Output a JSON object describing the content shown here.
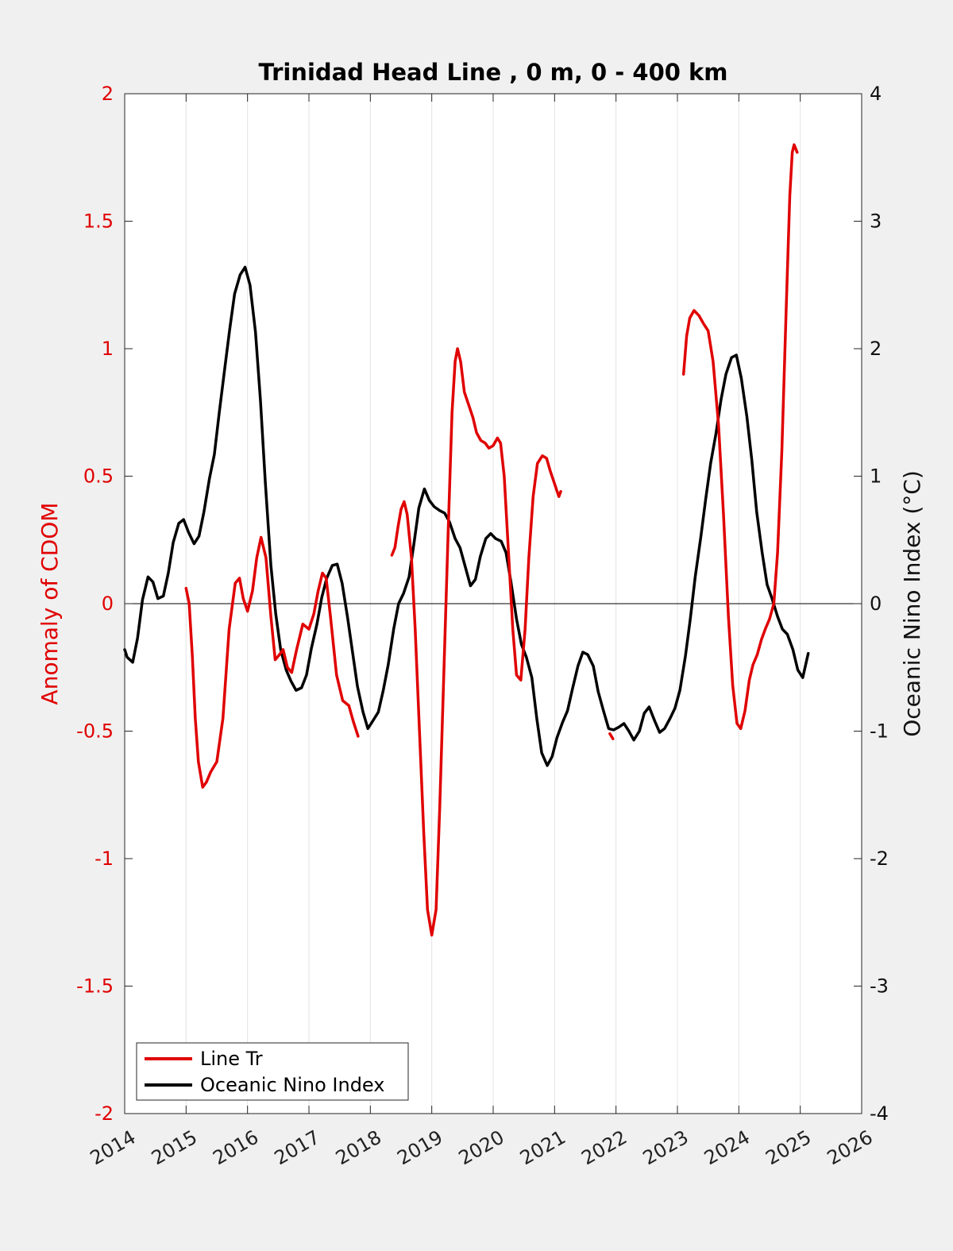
{
  "chart_data": {
    "type": "line",
    "title": "Trinidad Head Line , 0 m, 0 - 400 km",
    "xlabel": "",
    "ylabel_left": "Anomaly of CDOM",
    "ylabel_right": "Oceanic Nino Index (°C)",
    "xlim": [
      2014,
      2026
    ],
    "ylim_left": [
      -2,
      2
    ],
    "ylim_right": [
      -4,
      4
    ],
    "x_ticks": [
      "2014",
      "2015",
      "2016",
      "2017",
      "2018",
      "2019",
      "2020",
      "2021",
      "2022",
      "2023",
      "2024",
      "2025",
      "2026"
    ],
    "y_ticks_left": [
      "2",
      "1.5",
      "1",
      "0.5",
      "0",
      "-0.5",
      "-1",
      "-1.5",
      "-2"
    ],
    "y_ticks_right": [
      "4",
      "3",
      "2",
      "1",
      "0",
      "-1",
      "-2",
      "-3",
      "-4"
    ],
    "grid": "vertical",
    "zero_line": true,
    "legend": {
      "position": "bottom-left",
      "entries": [
        "Line Tr",
        "Oceanic Nino Index"
      ]
    },
    "colors": {
      "cdom": "#e00000",
      "oni": "#000000"
    },
    "series": [
      {
        "name": "Line Tr",
        "axis": "left",
        "segments": [
          [
            [
              2015.0,
              0.06
            ],
            [
              2015.05,
              0.0
            ],
            [
              2015.1,
              -0.2
            ],
            [
              2015.15,
              -0.45
            ],
            [
              2015.2,
              -0.62
            ],
            [
              2015.27,
              -0.72
            ],
            [
              2015.33,
              -0.7
            ],
            [
              2015.4,
              -0.66
            ],
            [
              2015.5,
              -0.62
            ],
            [
              2015.6,
              -0.45
            ],
            [
              2015.7,
              -0.1
            ],
            [
              2015.8,
              0.08
            ],
            [
              2015.87,
              0.1
            ],
            [
              2015.93,
              0.02
            ],
            [
              2016.0,
              -0.03
            ],
            [
              2016.08,
              0.05
            ],
            [
              2016.15,
              0.18
            ],
            [
              2016.22,
              0.26
            ],
            [
              2016.3,
              0.18
            ],
            [
              2016.38,
              -0.05
            ],
            [
              2016.45,
              -0.22
            ],
            [
              2016.52,
              -0.2
            ],
            [
              2016.58,
              -0.18
            ],
            [
              2016.65,
              -0.25
            ],
            [
              2016.72,
              -0.27
            ],
            [
              2016.8,
              -0.18
            ],
            [
              2016.9,
              -0.08
            ],
            [
              2017.0,
              -0.1
            ],
            [
              2017.08,
              -0.04
            ],
            [
              2017.15,
              0.05
            ],
            [
              2017.22,
              0.12
            ],
            [
              2017.28,
              0.1
            ],
            [
              2017.35,
              -0.05
            ],
            [
              2017.45,
              -0.28
            ],
            [
              2017.55,
              -0.38
            ],
            [
              2017.65,
              -0.4
            ],
            [
              2017.72,
              -0.46
            ],
            [
              2017.8,
              -0.52
            ]
          ],
          [
            [
              2018.35,
              0.19
            ],
            [
              2018.4,
              0.22
            ],
            [
              2018.45,
              0.3
            ],
            [
              2018.5,
              0.37
            ],
            [
              2018.55,
              0.4
            ],
            [
              2018.6,
              0.35
            ],
            [
              2018.67,
              0.18
            ],
            [
              2018.73,
              -0.1
            ],
            [
              2018.8,
              -0.5
            ],
            [
              2018.87,
              -0.9
            ],
            [
              2018.93,
              -1.2
            ],
            [
              2019.0,
              -1.3
            ],
            [
              2019.07,
              -1.2
            ],
            [
              2019.13,
              -0.8
            ],
            [
              2019.2,
              -0.25
            ],
            [
              2019.27,
              0.3
            ],
            [
              2019.33,
              0.75
            ],
            [
              2019.38,
              0.95
            ],
            [
              2019.42,
              1.0
            ],
            [
              2019.47,
              0.95
            ],
            [
              2019.53,
              0.83
            ],
            [
              2019.6,
              0.78
            ],
            [
              2019.67,
              0.73
            ],
            [
              2019.73,
              0.67
            ],
            [
              2019.8,
              0.64
            ],
            [
              2019.87,
              0.63
            ],
            [
              2019.93,
              0.61
            ],
            [
              2020.0,
              0.62
            ],
            [
              2020.07,
              0.65
            ],
            [
              2020.12,
              0.63
            ],
            [
              2020.18,
              0.5
            ],
            [
              2020.25,
              0.2
            ],
            [
              2020.32,
              -0.1
            ],
            [
              2020.38,
              -0.28
            ],
            [
              2020.45,
              -0.3
            ],
            [
              2020.52,
              -0.1
            ],
            [
              2020.58,
              0.18
            ],
            [
              2020.65,
              0.42
            ],
            [
              2020.72,
              0.55
            ],
            [
              2020.8,
              0.58
            ],
            [
              2020.87,
              0.57
            ],
            [
              2020.93,
              0.52
            ],
            [
              2021.0,
              0.47
            ],
            [
              2021.07,
              0.42
            ],
            [
              2021.1,
              0.44
            ]
          ],
          [
            [
              2021.9,
              -0.51
            ],
            [
              2021.95,
              -0.53
            ]
          ],
          [
            [
              2023.1,
              0.9
            ],
            [
              2023.15,
              1.05
            ],
            [
              2023.2,
              1.12
            ],
            [
              2023.27,
              1.15
            ],
            [
              2023.35,
              1.13
            ],
            [
              2023.42,
              1.1
            ],
            [
              2023.5,
              1.07
            ],
            [
              2023.58,
              0.95
            ],
            [
              2023.67,
              0.7
            ],
            [
              2023.75,
              0.35
            ],
            [
              2023.83,
              -0.05
            ],
            [
              2023.9,
              -0.32
            ],
            [
              2023.97,
              -0.47
            ],
            [
              2024.03,
              -0.49
            ],
            [
              2024.1,
              -0.42
            ],
            [
              2024.17,
              -0.3
            ],
            [
              2024.23,
              -0.24
            ],
            [
              2024.3,
              -0.2
            ],
            [
              2024.37,
              -0.14
            ],
            [
              2024.43,
              -0.1
            ],
            [
              2024.5,
              -0.06
            ],
            [
              2024.57,
              0.0
            ],
            [
              2024.63,
              0.2
            ],
            [
              2024.7,
              0.6
            ],
            [
              2024.77,
              1.15
            ],
            [
              2024.83,
              1.6
            ],
            [
              2024.87,
              1.77
            ],
            [
              2024.9,
              1.8
            ],
            [
              2024.95,
              1.77
            ]
          ]
        ]
      },
      {
        "name": "Oceanic Nino Index",
        "axis": "right",
        "segments": [
          [
            [
              2014.0,
              -0.36
            ],
            [
              2014.04,
              -0.42
            ],
            [
              2014.13,
              -0.46
            ],
            [
              2014.21,
              -0.27
            ],
            [
              2014.29,
              0.03
            ],
            [
              2014.38,
              0.21
            ],
            [
              2014.46,
              0.17
            ],
            [
              2014.54,
              0.04
            ],
            [
              2014.63,
              0.06
            ],
            [
              2014.71,
              0.24
            ],
            [
              2014.79,
              0.48
            ],
            [
              2014.88,
              0.63
            ],
            [
              2014.96,
              0.66
            ],
            [
              2015.04,
              0.56
            ],
            [
              2015.13,
              0.47
            ],
            [
              2015.21,
              0.53
            ],
            [
              2015.29,
              0.72
            ],
            [
              2015.38,
              0.98
            ],
            [
              2015.46,
              1.17
            ],
            [
              2015.54,
              1.5
            ],
            [
              2015.63,
              1.85
            ],
            [
              2015.71,
              2.15
            ],
            [
              2015.79,
              2.43
            ],
            [
              2015.88,
              2.58
            ],
            [
              2015.96,
              2.64
            ],
            [
              2016.04,
              2.5
            ],
            [
              2016.13,
              2.13
            ],
            [
              2016.21,
              1.6
            ],
            [
              2016.29,
              0.95
            ],
            [
              2016.38,
              0.3
            ],
            [
              2016.46,
              -0.08
            ],
            [
              2016.54,
              -0.36
            ],
            [
              2016.63,
              -0.52
            ],
            [
              2016.71,
              -0.61
            ],
            [
              2016.79,
              -0.68
            ],
            [
              2016.88,
              -0.66
            ],
            [
              2016.96,
              -0.56
            ],
            [
              2017.04,
              -0.35
            ],
            [
              2017.13,
              -0.16
            ],
            [
              2017.21,
              0.05
            ],
            [
              2017.29,
              0.2
            ],
            [
              2017.38,
              0.3
            ],
            [
              2017.46,
              0.31
            ],
            [
              2017.54,
              0.16
            ],
            [
              2017.63,
              -0.11
            ],
            [
              2017.71,
              -0.38
            ],
            [
              2017.79,
              -0.65
            ],
            [
              2017.88,
              -0.85
            ],
            [
              2017.96,
              -0.98
            ],
            [
              2018.04,
              -0.92
            ],
            [
              2018.13,
              -0.85
            ],
            [
              2018.21,
              -0.68
            ],
            [
              2018.29,
              -0.48
            ],
            [
              2018.38,
              -0.2
            ],
            [
              2018.46,
              0.0
            ],
            [
              2018.54,
              0.08
            ],
            [
              2018.63,
              0.21
            ],
            [
              2018.71,
              0.47
            ],
            [
              2018.79,
              0.75
            ],
            [
              2018.88,
              0.9
            ],
            [
              2018.96,
              0.81
            ],
            [
              2019.04,
              0.76
            ],
            [
              2019.13,
              0.73
            ],
            [
              2019.21,
              0.71
            ],
            [
              2019.29,
              0.64
            ],
            [
              2019.38,
              0.51
            ],
            [
              2019.46,
              0.44
            ],
            [
              2019.54,
              0.3
            ],
            [
              2019.63,
              0.14
            ],
            [
              2019.71,
              0.19
            ],
            [
              2019.79,
              0.37
            ],
            [
              2019.88,
              0.51
            ],
            [
              2019.96,
              0.55
            ],
            [
              2020.04,
              0.51
            ],
            [
              2020.13,
              0.49
            ],
            [
              2020.21,
              0.4
            ],
            [
              2020.29,
              0.17
            ],
            [
              2020.38,
              -0.12
            ],
            [
              2020.46,
              -0.32
            ],
            [
              2020.54,
              -0.42
            ],
            [
              2020.63,
              -0.58
            ],
            [
              2020.71,
              -0.9
            ],
            [
              2020.79,
              -1.17
            ],
            [
              2020.88,
              -1.27
            ],
            [
              2020.96,
              -1.2
            ],
            [
              2021.04,
              -1.05
            ],
            [
              2021.13,
              -0.93
            ],
            [
              2021.21,
              -0.84
            ],
            [
              2021.29,
              -0.67
            ],
            [
              2021.38,
              -0.49
            ],
            [
              2021.46,
              -0.38
            ],
            [
              2021.54,
              -0.4
            ],
            [
              2021.63,
              -0.49
            ],
            [
              2021.71,
              -0.69
            ],
            [
              2021.79,
              -0.83
            ],
            [
              2021.88,
              -0.98
            ],
            [
              2021.96,
              -0.99
            ],
            [
              2022.04,
              -0.97
            ],
            [
              2022.13,
              -0.94
            ],
            [
              2022.21,
              -1.0
            ],
            [
              2022.29,
              -1.07
            ],
            [
              2022.38,
              -1.0
            ],
            [
              2022.46,
              -0.86
            ],
            [
              2022.54,
              -0.81
            ],
            [
              2022.63,
              -0.92
            ],
            [
              2022.71,
              -1.01
            ],
            [
              2022.79,
              -0.98
            ],
            [
              2022.88,
              -0.9
            ],
            [
              2022.96,
              -0.82
            ],
            [
              2023.04,
              -0.68
            ],
            [
              2023.13,
              -0.41
            ],
            [
              2023.21,
              -0.12
            ],
            [
              2023.29,
              0.21
            ],
            [
              2023.38,
              0.52
            ],
            [
              2023.46,
              0.82
            ],
            [
              2023.54,
              1.1
            ],
            [
              2023.63,
              1.34
            ],
            [
              2023.71,
              1.6
            ],
            [
              2023.79,
              1.8
            ],
            [
              2023.88,
              1.93
            ],
            [
              2023.96,
              1.95
            ],
            [
              2024.04,
              1.77
            ],
            [
              2024.13,
              1.47
            ],
            [
              2024.21,
              1.13
            ],
            [
              2024.29,
              0.72
            ],
            [
              2024.38,
              0.4
            ],
            [
              2024.46,
              0.15
            ],
            [
              2024.54,
              0.04
            ],
            [
              2024.63,
              -0.1
            ],
            [
              2024.71,
              -0.2
            ],
            [
              2024.79,
              -0.24
            ],
            [
              2024.88,
              -0.36
            ],
            [
              2024.96,
              -0.52
            ],
            [
              2025.04,
              -0.58
            ],
            [
              2025.13,
              -0.39
            ]
          ]
        ]
      }
    ]
  }
}
